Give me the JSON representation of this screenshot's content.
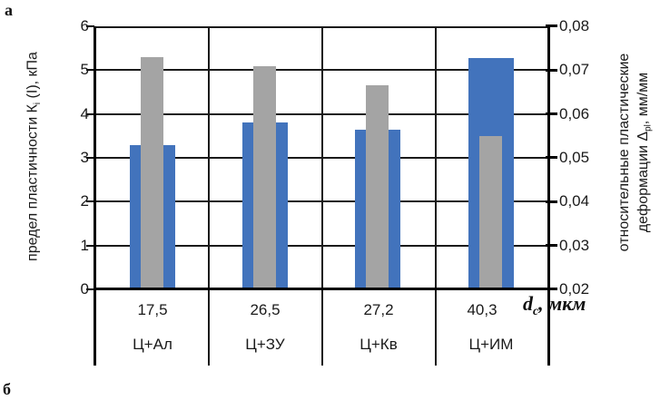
{
  "figure": {
    "panel_label_top": "а",
    "panel_label_bottom": "б"
  },
  "chart_data": {
    "type": "bar",
    "title": "",
    "grid": true,
    "legend": "none",
    "categories": [
      "Ц+Ал",
      "Ц+ЗУ",
      "Ц+Кв",
      "Ц+ИМ"
    ],
    "category_particle_sizes": [
      "17,5",
      "26,5",
      "27,2",
      "40,3"
    ],
    "x_axis": {
      "label_pre": "d",
      "label_sub": "c",
      "label_post": ", мкм"
    },
    "left_axis": {
      "title_pre": "предел пластичности К",
      "title_sub": "i",
      "title_post": " (I), кПа",
      "min": 0,
      "max": 6,
      "step": 1,
      "ticks": [
        "0",
        "1",
        "2",
        "3",
        "4",
        "5",
        "6"
      ]
    },
    "right_axis": {
      "title_line1": "относительные пластические",
      "title_line2_pre": "деформации Δ",
      "title_line2_sub": "pl",
      "title_line2_post": ", мм/мм",
      "min": 0.02,
      "max": 0.08,
      "step": 0.01,
      "ticks": [
        "0,02",
        "0,03",
        "0,04",
        "0,05",
        "0,06",
        "0,07",
        "0,08"
      ]
    },
    "series": [
      {
        "name": "wide-blue-bars",
        "color": "#4273BC",
        "values_left_scale": [
          3.3,
          3.8,
          3.65,
          5.28
        ],
        "values_right_scale": [
          0.053,
          0.058,
          0.0565,
          0.0728
        ]
      },
      {
        "name": "narrow-gray-bars",
        "color": "#A4A4A4",
        "values_left_scale": [
          5.3,
          5.1,
          4.65,
          3.5
        ],
        "values_right_scale": [
          0.073,
          0.071,
          0.0665,
          0.055
        ]
      }
    ]
  }
}
